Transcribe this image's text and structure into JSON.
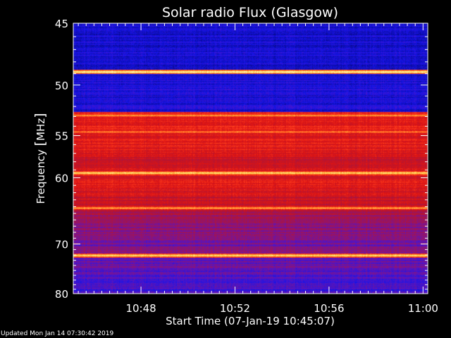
{
  "chart_data": {
    "type": "heatmap",
    "title": "Solar radio Flux (Glasgow)",
    "ylabel_parts": [
      "Frequency ",
      "[",
      "MHz",
      "]"
    ],
    "xlabel": "Start Time (07-Jan-19 10:45:07)",
    "y_unit": "MHz",
    "x_tick_labels": [
      "10:48",
      "10:52",
      "10:56",
      "11:00"
    ],
    "x_tick_minutes": [
      48,
      52,
      56,
      60
    ],
    "y_tick_labels": [
      "45",
      "50",
      "55",
      "60",
      "70",
      "80"
    ],
    "y_tick_values": [
      45,
      50,
      55,
      60,
      70,
      80
    ],
    "xlim_minutes": [
      45.12,
      60.2
    ],
    "ylim_mhz": [
      45,
      80
    ],
    "y_scale": "reciprocal (frequency decreasing downward)",
    "colormap": [
      "#00003c",
      "#0a0a96",
      "#1414e6",
      "#5014c8",
      "#8c1478",
      "#b41432",
      "#dc1414",
      "#ff3c1e",
      "#ff8c28",
      "#ffdc5a",
      "#ffffd2"
    ],
    "background_level_profile": [
      {
        "mhz": 45.5,
        "level": 0.17
      },
      {
        "mhz": 48.5,
        "level": 0.19
      },
      {
        "mhz": 51.0,
        "level": 0.2
      },
      {
        "mhz": 52.8,
        "level": 0.62
      },
      {
        "mhz": 56.0,
        "level": 0.62
      },
      {
        "mhz": 58.0,
        "level": 0.55
      },
      {
        "mhz": 61.0,
        "level": 0.6
      },
      {
        "mhz": 64.0,
        "level": 0.52
      },
      {
        "mhz": 67.0,
        "level": 0.4
      },
      {
        "mhz": 71.0,
        "level": 0.36
      },
      {
        "mhz": 74.0,
        "level": 0.33
      },
      {
        "mhz": 80.0,
        "level": 0.28
      }
    ],
    "bright_lines": [
      {
        "mhz": 48.85,
        "level": 1.0
      },
      {
        "mhz": 52.9,
        "level": 0.85
      },
      {
        "mhz": 54.6,
        "level": 0.82
      },
      {
        "mhz": 59.4,
        "level": 0.95
      },
      {
        "mhz": 64.2,
        "level": 0.86
      },
      {
        "mhz": 72.1,
        "level": 0.95
      }
    ],
    "grid": false
  },
  "footer": {
    "updated": "Updated Mon Jan 14 07:30:42 2019"
  }
}
